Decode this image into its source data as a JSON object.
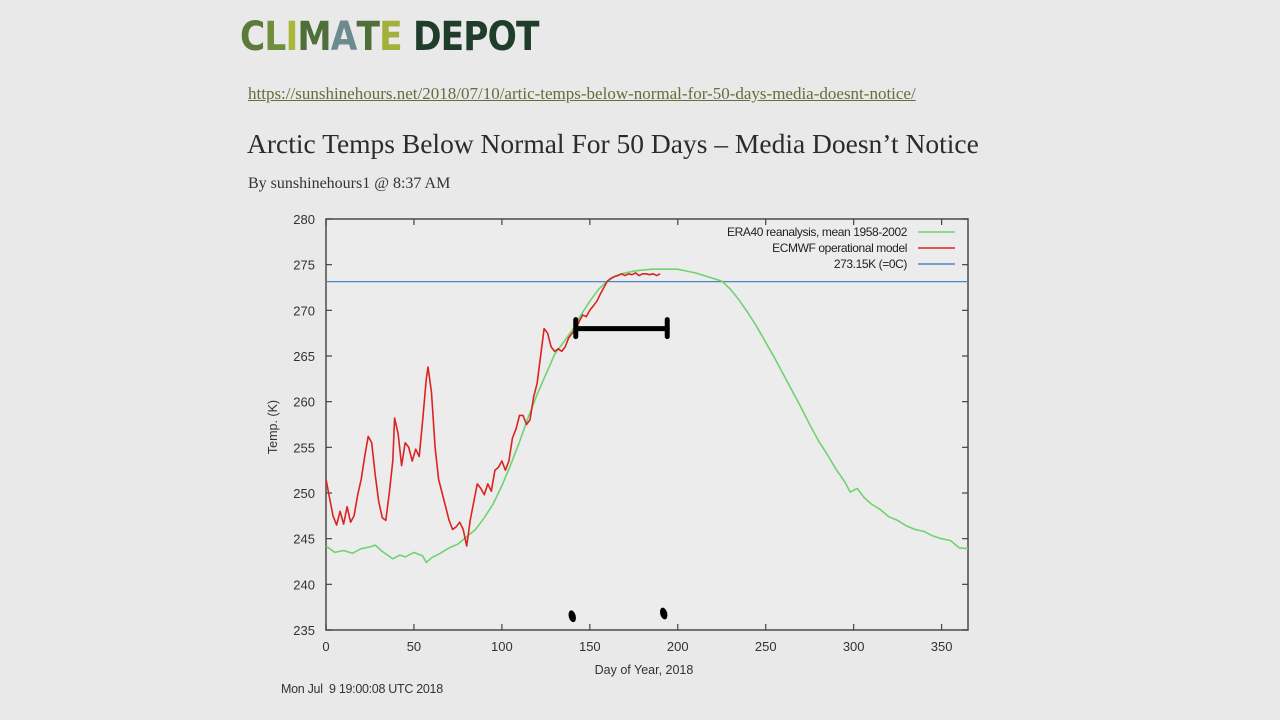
{
  "logo": {
    "text": "CLIMATE DEPOT",
    "letters": [
      {
        "ch": "C",
        "color": "#5c7a3a"
      },
      {
        "ch": "L",
        "color": "#6f8f3c"
      },
      {
        "ch": "I",
        "color": "#a8b83a"
      },
      {
        "ch": "M",
        "color": "#4f6f3a"
      },
      {
        "ch": "A",
        "color": "#6d8a8e"
      },
      {
        "ch": "T",
        "color": "#4f6f3a"
      },
      {
        "ch": "E",
        "color": "#a3b13a"
      },
      {
        "ch": " ",
        "color": "#1f3d2a"
      },
      {
        "ch": "D",
        "color": "#1f3d2a"
      },
      {
        "ch": "E",
        "color": "#1f3d2a"
      },
      {
        "ch": "P",
        "color": "#1f3d2a"
      },
      {
        "ch": "O",
        "color": "#1f3d2a"
      },
      {
        "ch": "T",
        "color": "#1f3d2a"
      }
    ]
  },
  "article": {
    "source_url": "https://sunshinehours.net/2018/07/10/artic-temps-below-normal-for-50-days-media-doesnt-notice/",
    "title": "Arctic Temps Below Normal For 50 Days – Media Doesn’t Notice",
    "byline": "By sunshinehours1 @ 8:37 AM"
  },
  "chart_data": {
    "type": "line",
    "title": "",
    "xlabel": "Day of Year, 2018",
    "ylabel": "Temp. (K)",
    "xlim": [
      0,
      365
    ],
    "ylim": [
      235,
      280
    ],
    "x_ticks": [
      0,
      50,
      100,
      150,
      200,
      250,
      300,
      350
    ],
    "y_ticks": [
      235,
      240,
      245,
      250,
      255,
      260,
      265,
      270,
      275,
      280
    ],
    "grid": false,
    "legend_position": "top-right",
    "timestamp": "Mon Jul  9 19:00:08 UTC 2018",
    "series": [
      {
        "name": "ERA40 reanalysis, mean 1958-2002",
        "color": "#6fd36f",
        "points": [
          [
            0,
            244.2
          ],
          [
            5,
            243.5
          ],
          [
            10,
            243.7
          ],
          [
            15,
            243.4
          ],
          [
            20,
            243.9
          ],
          [
            25,
            244.1
          ],
          [
            28,
            244.3
          ],
          [
            32,
            243.6
          ],
          [
            35,
            243.2
          ],
          [
            38,
            242.8
          ],
          [
            42,
            243.2
          ],
          [
            45,
            243.0
          ],
          [
            50,
            243.5
          ],
          [
            55,
            243.1
          ],
          [
            57,
            242.4
          ],
          [
            60,
            242.9
          ],
          [
            65,
            243.4
          ],
          [
            70,
            244.0
          ],
          [
            75,
            244.4
          ],
          [
            80,
            245.2
          ],
          [
            85,
            246.0
          ],
          [
            90,
            247.3
          ],
          [
            95,
            248.8
          ],
          [
            100,
            250.8
          ],
          [
            105,
            253.1
          ],
          [
            110,
            255.6
          ],
          [
            115,
            258.3
          ],
          [
            120,
            260.8
          ],
          [
            125,
            263.0
          ],
          [
            130,
            265.2
          ],
          [
            135,
            266.5
          ],
          [
            140,
            267.8
          ],
          [
            145,
            269.5
          ],
          [
            150,
            271.0
          ],
          [
            155,
            272.3
          ],
          [
            160,
            273.2
          ],
          [
            165,
            273.8
          ],
          [
            170,
            274.1
          ],
          [
            175,
            274.3
          ],
          [
            180,
            274.4
          ],
          [
            185,
            274.5
          ],
          [
            190,
            274.5
          ],
          [
            195,
            274.5
          ],
          [
            200,
            274.5
          ],
          [
            205,
            274.3
          ],
          [
            210,
            274.1
          ],
          [
            215,
            273.8
          ],
          [
            220,
            273.5
          ],
          [
            225,
            273.2
          ],
          [
            230,
            272.3
          ],
          [
            235,
            271.1
          ],
          [
            240,
            269.7
          ],
          [
            245,
            268.2
          ],
          [
            250,
            266.5
          ],
          [
            255,
            264.8
          ],
          [
            260,
            263.0
          ],
          [
            265,
            261.2
          ],
          [
            270,
            259.4
          ],
          [
            275,
            257.5
          ],
          [
            280,
            255.7
          ],
          [
            285,
            254.2
          ],
          [
            290,
            252.6
          ],
          [
            295,
            251.2
          ],
          [
            298,
            250.1
          ],
          [
            302,
            250.5
          ],
          [
            306,
            249.5
          ],
          [
            310,
            248.8
          ],
          [
            315,
            248.2
          ],
          [
            320,
            247.4
          ],
          [
            325,
            247.0
          ],
          [
            330,
            246.4
          ],
          [
            335,
            246.0
          ],
          [
            340,
            245.8
          ],
          [
            345,
            245.3
          ],
          [
            350,
            245.0
          ],
          [
            355,
            244.8
          ],
          [
            360,
            244.0
          ],
          [
            365,
            243.9
          ]
        ]
      },
      {
        "name": "ECMWF operational model",
        "color": "#dd2222",
        "points": [
          [
            0,
            251.5
          ],
          [
            2,
            249.5
          ],
          [
            4,
            247.5
          ],
          [
            6,
            246.5
          ],
          [
            8,
            248.0
          ],
          [
            10,
            246.6
          ],
          [
            12,
            248.5
          ],
          [
            14,
            246.8
          ],
          [
            16,
            247.5
          ],
          [
            18,
            249.8
          ],
          [
            20,
            251.5
          ],
          [
            22,
            254.0
          ],
          [
            24,
            256.2
          ],
          [
            26,
            255.5
          ],
          [
            28,
            252.0
          ],
          [
            30,
            249.0
          ],
          [
            32,
            247.3
          ],
          [
            34,
            247.0
          ],
          [
            36,
            250.0
          ],
          [
            38,
            253.5
          ],
          [
            39,
            258.2
          ],
          [
            41,
            256.5
          ],
          [
            43,
            253.0
          ],
          [
            45,
            255.5
          ],
          [
            47,
            255.0
          ],
          [
            49,
            253.5
          ],
          [
            51,
            254.8
          ],
          [
            53,
            254.0
          ],
          [
            55,
            258.0
          ],
          [
            57,
            262.5
          ],
          [
            58,
            263.8
          ],
          [
            60,
            261.0
          ],
          [
            62,
            255.0
          ],
          [
            64,
            251.5
          ],
          [
            66,
            250.0
          ],
          [
            68,
            248.5
          ],
          [
            70,
            247.0
          ],
          [
            72,
            246.0
          ],
          [
            74,
            246.3
          ],
          [
            76,
            246.8
          ],
          [
            78,
            246.0
          ],
          [
            80,
            244.2
          ],
          [
            82,
            247.0
          ],
          [
            84,
            249.0
          ],
          [
            86,
            251.0
          ],
          [
            88,
            250.5
          ],
          [
            90,
            249.8
          ],
          [
            92,
            251.0
          ],
          [
            94,
            250.2
          ],
          [
            96,
            252.5
          ],
          [
            98,
            252.8
          ],
          [
            100,
            253.5
          ],
          [
            102,
            252.5
          ],
          [
            104,
            253.5
          ],
          [
            106,
            256.0
          ],
          [
            108,
            257.0
          ],
          [
            110,
            258.5
          ],
          [
            112,
            258.5
          ],
          [
            114,
            257.5
          ],
          [
            116,
            258.0
          ],
          [
            118,
            260.5
          ],
          [
            120,
            262.0
          ],
          [
            122,
            265.0
          ],
          [
            124,
            268.0
          ],
          [
            126,
            267.5
          ],
          [
            128,
            266.0
          ],
          [
            130,
            265.5
          ],
          [
            132,
            265.8
          ],
          [
            134,
            265.5
          ],
          [
            136,
            266.0
          ],
          [
            138,
            267.0
          ],
          [
            140,
            267.5
          ],
          [
            142,
            268.0
          ],
          [
            144,
            268.8
          ],
          [
            146,
            269.5
          ],
          [
            148,
            269.3
          ],
          [
            150,
            270.0
          ],
          [
            152,
            270.5
          ],
          [
            154,
            271.0
          ],
          [
            156,
            271.8
          ],
          [
            158,
            272.5
          ],
          [
            160,
            273.2
          ],
          [
            162,
            273.5
          ],
          [
            164,
            273.7
          ],
          [
            166,
            273.8
          ],
          [
            168,
            274.0
          ],
          [
            170,
            273.8
          ],
          [
            172,
            274.0
          ],
          [
            174,
            273.9
          ],
          [
            176,
            274.1
          ],
          [
            178,
            273.8
          ],
          [
            180,
            274.0
          ],
          [
            182,
            274.0
          ],
          [
            184,
            273.9
          ],
          [
            186,
            274.0
          ],
          [
            188,
            273.8
          ],
          [
            190,
            274.0
          ]
        ]
      },
      {
        "name": "273.15K (=0C)",
        "color": "#4a86c8",
        "points": [
          [
            0,
            273.15
          ],
          [
            365,
            273.15
          ]
        ]
      }
    ],
    "annotations": {
      "bar": {
        "x_start": 142,
        "x_end": 194,
        "y": 268,
        "color": "#000000"
      },
      "marks": [
        {
          "x": 140,
          "y": 236.5
        },
        {
          "x": 192,
          "y": 236.8
        }
      ]
    }
  }
}
